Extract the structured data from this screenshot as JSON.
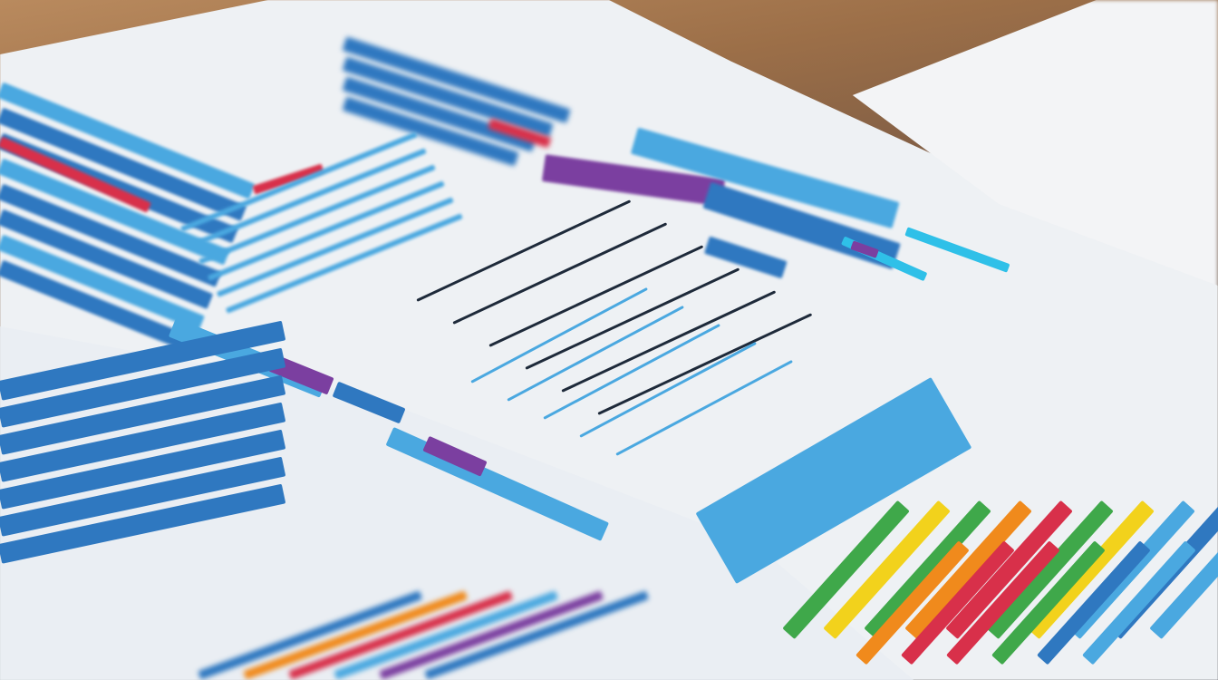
{
  "scene": {
    "subject": "printed-charts-on-table",
    "colors": {
      "table": "#9c6f48",
      "paper": "#eef1f4",
      "blue": "#2f78c0",
      "light_blue": "#4aa8e0",
      "cyan": "#2fc0e8",
      "purple": "#7b3fa0",
      "red": "#d8304a",
      "green": "#3fa84a",
      "yellow": "#f2d21c",
      "orange": "#f08a1c",
      "dark": "#1e2a3a"
    }
  }
}
